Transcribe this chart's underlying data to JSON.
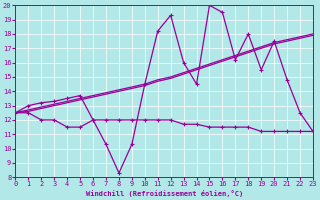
{
  "background_color": "#b2e8e8",
  "line_color": "#990099",
  "grid_color": "#ffffff",
  "xlabel": "Windchill (Refroidissement éolien,°C)",
  "ylim": [
    8,
    20
  ],
  "xlim": [
    0,
    23
  ],
  "yticks": [
    8,
    9,
    10,
    11,
    12,
    13,
    14,
    15,
    16,
    17,
    18,
    19,
    20
  ],
  "xticks": [
    0,
    1,
    2,
    3,
    4,
    5,
    6,
    7,
    8,
    9,
    10,
    11,
    12,
    13,
    14,
    15,
    16,
    17,
    18,
    19,
    20,
    21,
    22,
    23
  ],
  "series_volatile": {
    "x": [
      0,
      1,
      2,
      3,
      4,
      5,
      6,
      7,
      8,
      9,
      10,
      11,
      12,
      13,
      14,
      15,
      16,
      17,
      18,
      19,
      20,
      21,
      22,
      23
    ],
    "y": [
      12.5,
      13.0,
      13.2,
      13.3,
      13.5,
      13.7,
      12.0,
      10.3,
      8.3,
      10.3,
      14.5,
      18.2,
      19.3,
      16.0,
      14.5,
      20.0,
      19.5,
      16.2,
      18.0,
      15.5,
      17.5,
      14.8,
      12.5,
      11.2
    ]
  },
  "series_linear1": {
    "x": [
      0,
      1,
      2,
      3,
      4,
      5,
      6,
      7,
      8,
      9,
      10,
      11,
      12,
      13,
      14,
      15,
      16,
      17,
      18,
      19,
      20,
      21,
      22,
      23
    ],
    "y": [
      12.5,
      12.7,
      12.9,
      13.1,
      13.3,
      13.5,
      13.7,
      13.9,
      14.1,
      14.3,
      14.5,
      14.8,
      15.0,
      15.3,
      15.6,
      15.9,
      16.2,
      16.5,
      16.8,
      17.1,
      17.4,
      17.6,
      17.8,
      18.0
    ]
  },
  "series_linear2": {
    "x": [
      0,
      1,
      2,
      3,
      4,
      5,
      6,
      7,
      8,
      9,
      10,
      11,
      12,
      13,
      14,
      15,
      16,
      17,
      18,
      19,
      20,
      21,
      22,
      23
    ],
    "y": [
      12.5,
      12.6,
      12.8,
      13.0,
      13.2,
      13.4,
      13.6,
      13.8,
      14.0,
      14.2,
      14.4,
      14.7,
      14.9,
      15.2,
      15.5,
      15.8,
      16.1,
      16.4,
      16.7,
      17.0,
      17.3,
      17.5,
      17.7,
      17.9
    ]
  },
  "series_low": {
    "x": [
      0,
      1,
      2,
      3,
      4,
      5,
      6,
      7,
      8,
      9,
      10,
      11,
      12,
      13,
      14,
      15,
      16,
      17,
      18,
      19,
      20,
      21,
      22,
      23
    ],
    "y": [
      12.5,
      12.5,
      12.0,
      12.0,
      11.5,
      11.5,
      12.0,
      12.0,
      12.0,
      12.0,
      12.0,
      12.0,
      12.0,
      11.7,
      11.7,
      11.5,
      11.5,
      11.5,
      11.5,
      11.2,
      11.2,
      11.2,
      11.2,
      11.2
    ]
  }
}
